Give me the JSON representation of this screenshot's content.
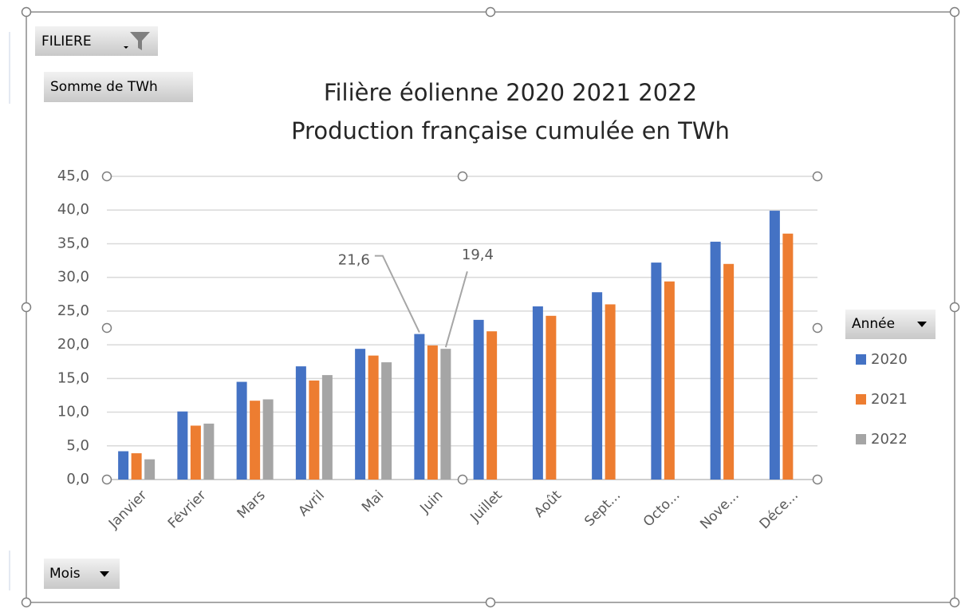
{
  "chart_data": {
    "type": "bar",
    "title": "Filière éolienne 2020 2021 2022",
    "subtitle": "Production française cumulée  en TWh",
    "filter_button": "FILIERE",
    "value_button": "Somme de TWh",
    "legend_button": "Année",
    "axis_button": "Mois",
    "categories": [
      "Janvier",
      "Février",
      "Mars",
      "Avril",
      "Mai",
      "Juin",
      "Juillet",
      "Août",
      "Sept...",
      "Octo...",
      "Nove...",
      "Déce..."
    ],
    "series": [
      {
        "name": "2020",
        "color": "#4472c4",
        "values": [
          4.2,
          10.1,
          14.5,
          16.8,
          19.4,
          21.6,
          23.7,
          25.7,
          27.8,
          32.2,
          35.3,
          39.9
        ],
        "value_labels": [
          null,
          null,
          null,
          null,
          null,
          "21,6",
          null,
          null,
          null,
          null,
          null,
          null
        ]
      },
      {
        "name": "2021",
        "color": "#ed7d31",
        "values": [
          3.9,
          8.0,
          11.7,
          14.7,
          18.4,
          19.9,
          22.0,
          24.3,
          26.0,
          29.4,
          32.0,
          36.5
        ]
      },
      {
        "name": "2022",
        "color": "#a5a5a5",
        "values": [
          3.0,
          8.3,
          11.9,
          15.5,
          17.4,
          19.4,
          null,
          null,
          null,
          null,
          null,
          null
        ],
        "value_labels": [
          null,
          null,
          null,
          null,
          null,
          "19,4",
          null,
          null,
          null,
          null,
          null,
          null
        ]
      }
    ],
    "ylim": [
      0,
      45
    ],
    "yticks": [
      {
        "value": 0,
        "label": "0,0"
      },
      {
        "value": 5,
        "label": "5,0"
      },
      {
        "value": 10,
        "label": "10,0"
      },
      {
        "value": 15,
        "label": "15,0"
      },
      {
        "value": 20,
        "label": "20,0"
      },
      {
        "value": 25,
        "label": "25,0"
      },
      {
        "value": 30,
        "label": "30,0"
      },
      {
        "value": 35,
        "label": "35,0"
      },
      {
        "value": 40,
        "label": "40,0"
      },
      {
        "value": 45,
        "label": "45,0"
      }
    ],
    "grid": true,
    "legend": "right"
  }
}
